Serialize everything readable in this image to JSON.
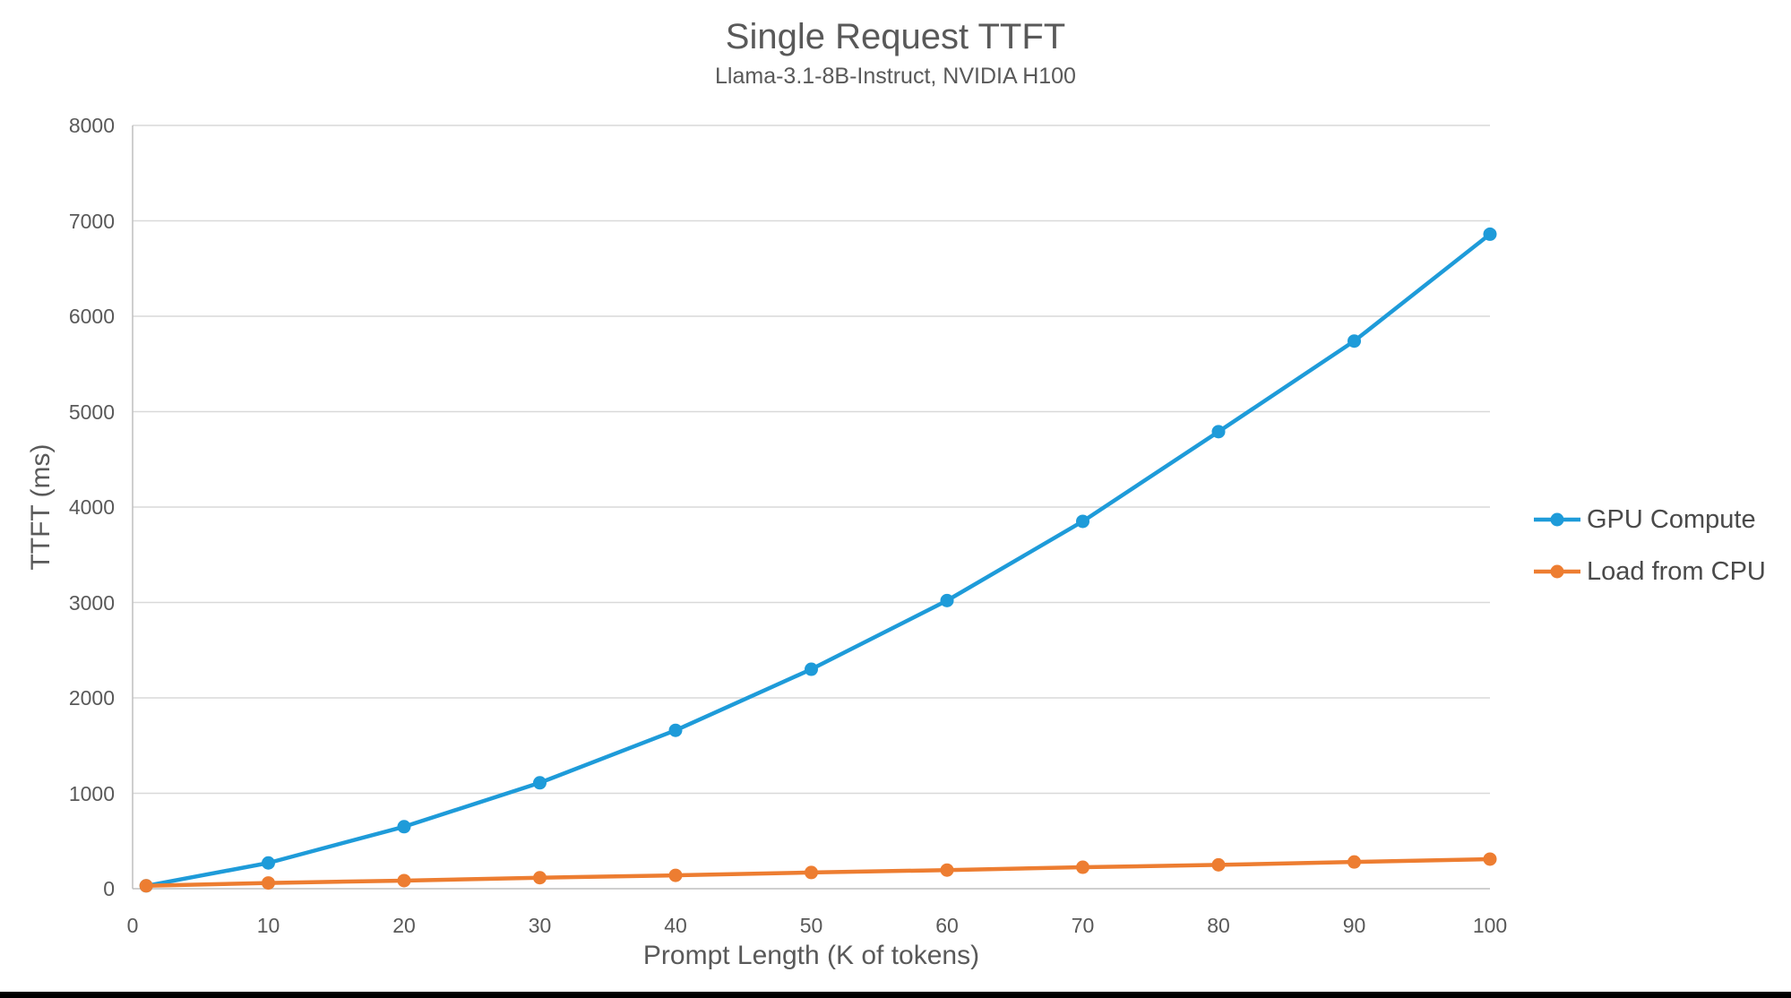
{
  "page": {
    "title": "Single Request TTFT",
    "subtitle": "Llama-3.1-8B-Instruct, NVIDIA H100"
  },
  "colors": {
    "gpu_compute_blue": "#1E9BD9",
    "load_cpu_orange": "#ED7D31",
    "text_gray": "#595959",
    "legend_text": "#4a4a4a",
    "gridline": "#D9D9D9",
    "axis_line": "#BFBFBF",
    "bottom_bar": "#000000",
    "background": "#FFFFFF"
  },
  "chart_data": {
    "type": "line",
    "title": "Single Request TTFT",
    "subtitle": "Llama-3.1-8B-Instruct, NVIDIA H100",
    "xlabel": "Prompt Length (K of tokens)",
    "ylabel": "TTFT (ms)",
    "xlim": [
      0,
      100
    ],
    "ylim": [
      0,
      8000
    ],
    "x_ticks": [
      0,
      10,
      20,
      30,
      40,
      50,
      60,
      70,
      80,
      90,
      100
    ],
    "y_ticks": [
      0,
      1000,
      2000,
      3000,
      4000,
      5000,
      6000,
      7000,
      8000
    ],
    "grid": true,
    "legend_position": "right",
    "marker": "circle",
    "x": [
      1,
      10,
      20,
      30,
      40,
      50,
      60,
      70,
      80,
      90,
      100
    ],
    "series": [
      {
        "name": "GPU Compute",
        "color": "#1E9BD9",
        "values": [
          30,
          270,
          650,
          1110,
          1660,
          2300,
          3020,
          3850,
          4790,
          5740,
          6860
        ]
      },
      {
        "name": "Load from CPU",
        "color": "#ED7D31",
        "values": [
          30,
          60,
          85,
          115,
          140,
          170,
          195,
          225,
          250,
          280,
          310
        ]
      }
    ]
  }
}
